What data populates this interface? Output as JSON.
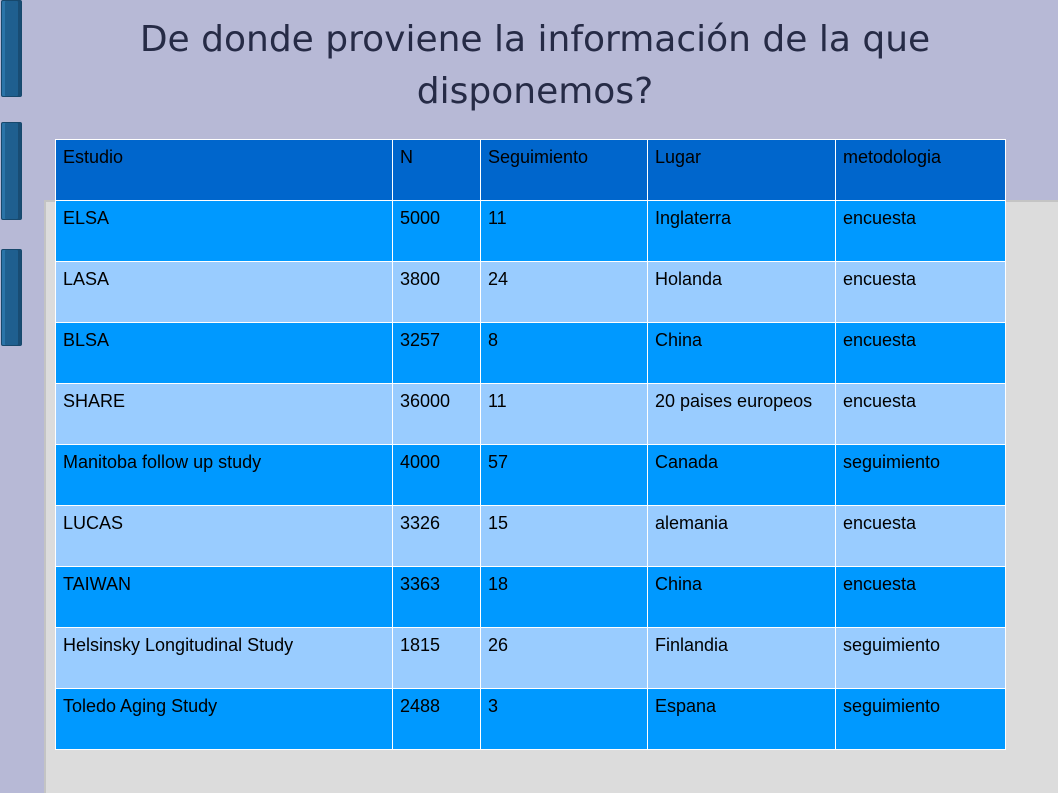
{
  "title": "De donde proviene la información de la que disponemos?",
  "table": {
    "headers": [
      "Estudio",
      "N",
      "Seguimiento",
      "Lugar",
      "metodologia"
    ],
    "rows": [
      [
        "ELSA",
        "5000",
        "11",
        "Inglaterra",
        "encuesta"
      ],
      [
        "LASA",
        "3800",
        "24",
        "Holanda",
        "encuesta"
      ],
      [
        "BLSA",
        "3257",
        "8",
        "China",
        "encuesta"
      ],
      [
        "SHARE",
        "36000",
        "11",
        "20 paises europeos",
        "encuesta"
      ],
      [
        "Manitoba follow up study",
        "4000",
        "57",
        "Canada",
        "seguimiento"
      ],
      [
        "LUCAS",
        "3326",
        "15",
        "alemania",
        "encuesta"
      ],
      [
        "TAIWAN",
        "3363",
        "18",
        "China",
        "encuesta"
      ],
      [
        "Helsinsky Longitudinal Study",
        "1815",
        "26",
        "Finlandia",
        "seguimiento"
      ],
      [
        "Toledo Aging Study",
        "2488",
        "3",
        "Espana",
        "seguimiento"
      ]
    ]
  },
  "colors": {
    "background": "#b7b9d6",
    "panel": "#dcdcdc",
    "header_fill": "#0066cc",
    "row_dark": "#0099ff",
    "row_light": "#99ccff",
    "decor_bars": "#1f5f8f"
  }
}
